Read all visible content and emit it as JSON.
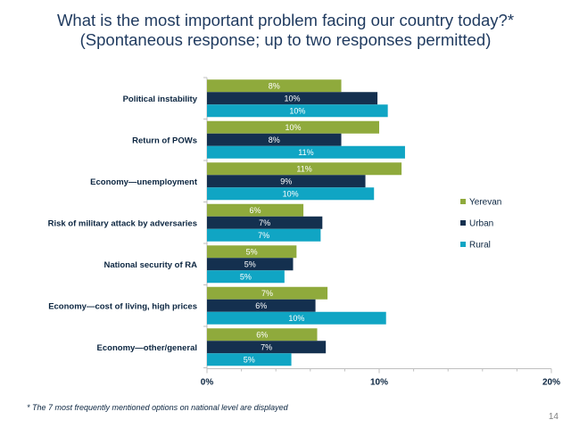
{
  "title_line1": "What is the most important problem facing our country today?*",
  "title_line2": "(Spontaneous response; up to two responses permitted)",
  "footnote": "* The 7 most frequently mentioned options on national level are displayed",
  "page_number": "14",
  "colors": {
    "Yerevan": "#8faa3c",
    "Urban": "#14304f",
    "Rural": "#10a5c4"
  },
  "chart_data": {
    "type": "bar",
    "orientation": "horizontal",
    "categories": [
      "Political instability",
      "Return of POWs",
      "Economy—unemployment",
      "Risk of military attack by adversaries",
      "National security of RA",
      "Economy—cost of living, high prices",
      "Economy—other/general"
    ],
    "series": [
      {
        "name": "Yerevan",
        "values": [
          7.8,
          10.0,
          11.3,
          5.6,
          5.2,
          7.0,
          6.4
        ],
        "labels": [
          "8%",
          "10%",
          "11%",
          "6%",
          "5%",
          "7%",
          "6%"
        ]
      },
      {
        "name": "Urban",
        "values": [
          9.9,
          7.8,
          9.2,
          6.7,
          5.0,
          6.3,
          6.9
        ],
        "labels": [
          "10%",
          "8%",
          "9%",
          "7%",
          "5%",
          "6%",
          "7%"
        ]
      },
      {
        "name": "Rural",
        "values": [
          10.5,
          11.5,
          9.7,
          6.6,
          4.5,
          10.4,
          4.9
        ],
        "labels": [
          "10%",
          "11%",
          "10%",
          "7%",
          "5%",
          "10%",
          "5%"
        ]
      }
    ],
    "x_ticks": [
      "0%",
      "10%",
      "20%"
    ],
    "xlim": [
      0,
      20
    ],
    "legend_position": "right",
    "grid": false
  }
}
